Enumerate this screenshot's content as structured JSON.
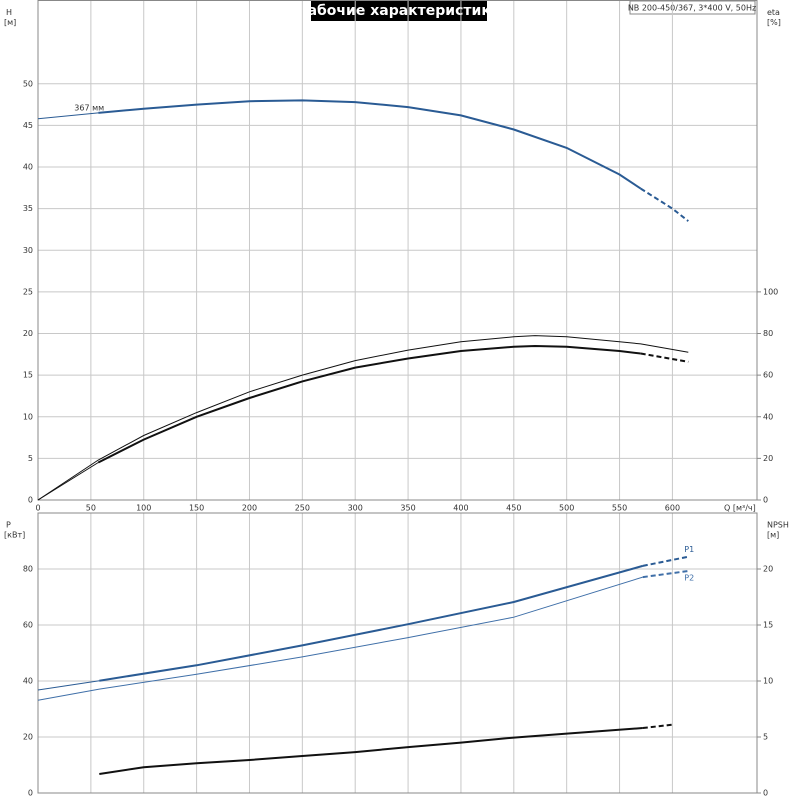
{
  "chart_data": [
    {
      "type": "line",
      "title": "Рабочие характеристики",
      "note": "NB 200-450/367, 3*400 V, 50Hz",
      "x_label": "Q [м³/ч]",
      "xlim": [
        0,
        680
      ],
      "xticks": [
        0,
        50,
        100,
        150,
        200,
        250,
        300,
        350,
        400,
        450,
        500,
        550,
        600
      ],
      "xtick_labels": true,
      "y_label": "H",
      "y_unit": "[м]",
      "ylim": [
        0,
        60
      ],
      "yticks": [
        0,
        5,
        10,
        15,
        20,
        25,
        30,
        35,
        40,
        45,
        50
      ],
      "y2_label": "eta",
      "y2_unit": "[%]",
      "y2lim": [
        0,
        240
      ],
      "y2ticks": [
        0,
        20,
        40,
        60,
        80,
        100
      ],
      "grid": true,
      "curves": [
        {
          "name": "367 мм",
          "label_at": "start",
          "axis": "y",
          "color": "#2a5b94",
          "segments": [
            {
              "style": "thin",
              "x": [
                0,
                57
              ],
              "values": [
                45.8,
                46.5
              ]
            },
            {
              "style": "solid",
              "x": [
                57,
                100,
                150,
                200,
                250,
                300,
                350,
                400,
                450,
                500,
                550,
                570
              ],
              "values": [
                46.5,
                47.0,
                47.5,
                47.9,
                48.0,
                47.8,
                47.2,
                46.2,
                44.5,
                42.3,
                39.1,
                37.4
              ]
            },
            {
              "style": "dashed",
              "x": [
                570,
                600,
                615
              ],
              "values": [
                37.4,
                35.0,
                33.5
              ]
            }
          ]
        },
        {
          "axis": "y2",
          "color": "#111111",
          "segments": [
            {
              "style": "thin",
              "x": [
                0,
                57,
                100,
                150,
                200,
                250,
                300,
                350,
                400,
                450,
                470,
                500,
                550,
                570,
                615
              ],
              "values": [
                0,
                19.2,
                31,
                42,
                52,
                60,
                67,
                72,
                76,
                78.4,
                79,
                78.4,
                76,
                75,
                71
              ]
            }
          ]
        },
        {
          "axis": "y2",
          "color": "#111111",
          "segments": [
            {
              "style": "thin",
              "x": [
                0,
                57
              ],
              "values": [
                0,
                18
              ]
            },
            {
              "style": "solid",
              "x": [
                57,
                100,
                150,
                200,
                250,
                300,
                350,
                400,
                450,
                470,
                500,
                550,
                570
              ],
              "values": [
                18,
                29,
                40,
                49,
                57,
                63.6,
                68,
                71.6,
                73.6,
                74,
                73.6,
                71.6,
                70.4
              ]
            },
            {
              "style": "dashed",
              "x": [
                570,
                615
              ],
              "values": [
                70.4,
                66.4
              ]
            }
          ]
        }
      ]
    },
    {
      "type": "line",
      "xlim": [
        0,
        680
      ],
      "xticks": [
        0,
        50,
        100,
        150,
        200,
        250,
        300,
        350,
        400,
        450,
        500,
        550,
        600
      ],
      "xtick_labels": false,
      "y_label": "P",
      "y_unit": "[кВт]",
      "ylim": [
        0,
        100
      ],
      "yticks": [
        0,
        20,
        40,
        60,
        80
      ],
      "y2_label": "NPSH",
      "y2_unit": "[м]",
      "y2lim": [
        0,
        25
      ],
      "y2ticks": [
        0,
        5,
        10,
        15,
        20
      ],
      "grid": true,
      "curves": [
        {
          "name": "P1",
          "label_at": "end",
          "axis": "y",
          "color": "#2a5b94",
          "segments": [
            {
              "style": "thin",
              "x": [
                0,
                58
              ],
              "values": [
                36.8,
                40.1
              ]
            },
            {
              "style": "solid",
              "x": [
                58,
                150,
                250,
                350,
                450,
                572
              ],
              "values": [
                40.1,
                45.6,
                52.7,
                60.3,
                68.2,
                81.1
              ]
            },
            {
              "style": "dashed",
              "x": [
                572,
                615
              ],
              "values": [
                81.1,
                84.4
              ]
            }
          ]
        },
        {
          "name": "P2",
          "label_at": "end",
          "axis": "y",
          "color": "#3f6fa8",
          "segments": [
            {
              "style": "thin",
              "x": [
                0,
                58,
                150,
                250,
                350,
                450,
                572
              ],
              "values": [
                33.1,
                37.1,
                42.4,
                48.6,
                55.5,
                62.8,
                77.1
              ]
            },
            {
              "style": "dashed",
              "x": [
                572,
                615
              ],
              "values": [
                77.1,
                79.3
              ]
            }
          ]
        },
        {
          "axis": "y2",
          "color": "#111111",
          "segments": [
            {
              "style": "solid",
              "x": [
                58,
                100,
                150,
                200,
                250,
                300,
                350,
                400,
                450,
                500,
                572
              ],
              "values": [
                1.7,
                2.3,
                2.65,
                2.95,
                3.3,
                3.65,
                4.1,
                4.5,
                4.95,
                5.3,
                5.8
              ]
            },
            {
              "style": "dashed",
              "x": [
                572,
                600
              ],
              "values": [
                5.8,
                6.1
              ]
            }
          ]
        }
      ]
    }
  ]
}
